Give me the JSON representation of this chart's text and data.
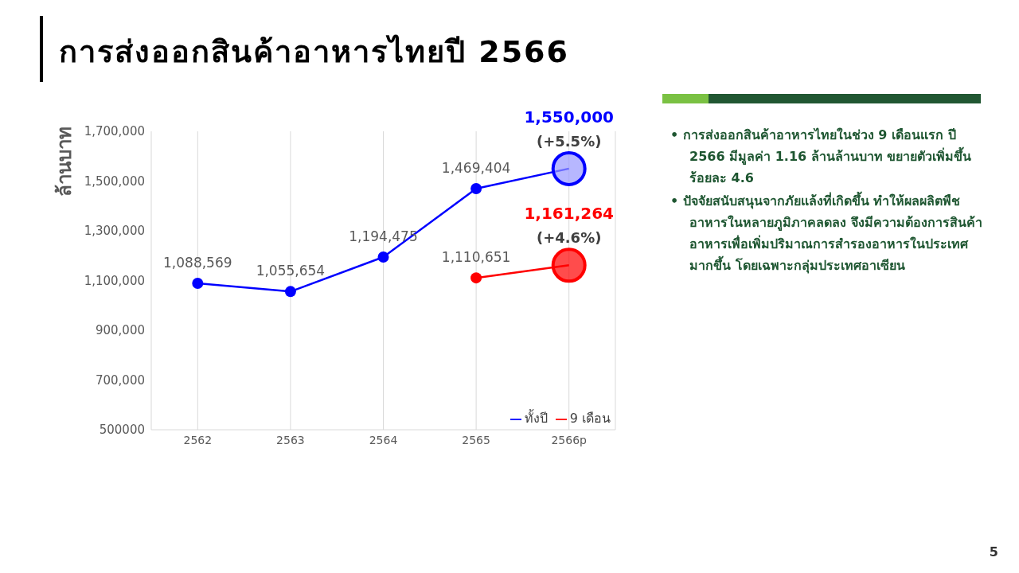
{
  "chart_data": {
    "type": "line",
    "title": "การส่งออกสินค้าอาหารไทยปี 2566",
    "ylabel": "ล้านบาท",
    "categories": [
      "2562",
      "2563",
      "2564",
      "2565",
      "2566p"
    ],
    "series": [
      {
        "name": "ทั้งปี",
        "color": "#0000ff",
        "colors": [
          "#0000ff",
          "#0000ff",
          "#0000ff",
          "#0000ff",
          "#9999ff"
        ],
        "values": [
          1088569,
          1055654,
          1194475,
          1469404,
          1550000
        ],
        "value_labels": [
          "1,088,569",
          "1,055,654",
          "1,194,475",
          "1,469,404",
          "1,550,000"
        ]
      },
      {
        "name": "9 เดือน",
        "color": "#ff0000",
        "colors": [
          null,
          null,
          null,
          "#ff0000",
          "#ff0000"
        ],
        "values": [
          null,
          null,
          null,
          1110651,
          1161264
        ],
        "value_labels": [
          null,
          null,
          null,
          "1,110,651",
          "1,161,264"
        ]
      }
    ],
    "ylim": [
      500000,
      1700000
    ],
    "yticks": [
      500000,
      {
        "value": 700000,
        "label": "700,000"
      },
      {
        "value": 900000,
        "label": "900,000"
      },
      {
        "value": 1100000,
        "label": "1,100,000"
      },
      {
        "value": 1300000,
        "label": "1,300,000"
      },
      {
        "value": 1500000,
        "label": "1,500,000"
      },
      {
        "value": 1700000,
        "label": "1,700,000"
      }
    ],
    "grid": "x",
    "legend": "bottom right",
    "marker": "circle",
    "line_style": "solid",
    "annotations": [
      {
        "text": "(+5.5%)",
        "x": "2566p",
        "y": 1550000
      },
      {
        "text": "(+4.6%)",
        "x": "2566p",
        "y": 1161264
      },
      "• การส่งออกสินค้าอาหารไทยในช่วง 9 เดือนแรก ปี 2566 มีมูลค่า 1.16 ล้านล้านบาท ขยายตัวเพิ่มขึ้นร้อยละ 4.6",
      "• ปัจจัยสนับสนุนจากภัยแล้งที่เกิดขึ้น ทำให้ผลผลิตพืชอาหารในหลายภูมิภาคลดลง จึงมีความต้องการสินค้าอาหารเพื่อเพิ่มปริมาณการสำรองอาหารในประเทศมากขึ้น โดยเฉพาะกลุ่มประเทศอาเซียน",
      "5"
    ]
  }
}
